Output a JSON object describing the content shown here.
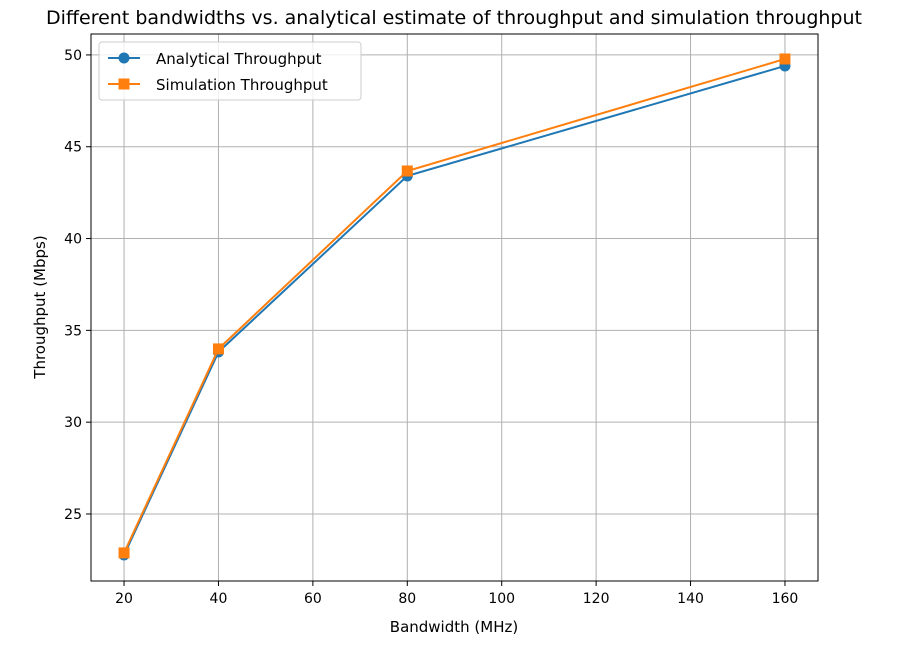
{
  "chart_data": {
    "type": "line",
    "title": "Different bandwidths vs. analytical estimate of throughput and simulation throughput",
    "xlabel": "Bandwidth (MHz)",
    "ylabel": "Throughput (Mbps)",
    "xlim": [
      13,
      167
    ],
    "ylim": [
      21.35,
      51.14
    ],
    "xticks": [
      20,
      40,
      60,
      80,
      100,
      120,
      140,
      160
    ],
    "yticks": [
      25,
      30,
      35,
      40,
      45,
      50
    ],
    "grid": true,
    "legend_position": "top-left",
    "x": [
      20,
      40,
      80,
      160
    ],
    "series": [
      {
        "name": "Analytical Throughput",
        "values": [
          22.77,
          33.82,
          43.41,
          49.4
        ],
        "color": "#1f77b4",
        "marker": "circle"
      },
      {
        "name": "Simulation Throughput",
        "values": [
          22.88,
          33.99,
          43.68,
          49.78
        ],
        "color": "#ff7f0e",
        "marker": "square"
      }
    ]
  }
}
